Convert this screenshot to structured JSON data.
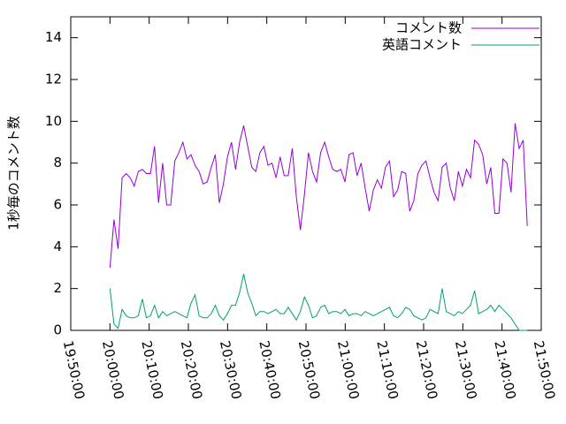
{
  "chart_data": {
    "type": "line",
    "ylabel": "1秒毎のコメント数",
    "xlim": [
      "19:50:00",
      "21:50:00"
    ],
    "xticks": [
      "19:50:00",
      "20:00:00",
      "20:10:00",
      "20:20:00",
      "20:30:00",
      "20:40:00",
      "20:50:00",
      "21:00:00",
      "21:10:00",
      "21:20:00",
      "21:30:00",
      "21:40:00",
      "21:50:00"
    ],
    "ylim": [
      0,
      15
    ],
    "yticks": [
      0,
      2,
      4,
      6,
      8,
      10,
      12,
      14
    ],
    "legend": "top-right",
    "x": [
      "20:00:00",
      "20:01:02",
      "20:02:04",
      "20:03:06",
      "20:04:08",
      "20:05:10",
      "20:06:12",
      "20:07:14",
      "20:08:16",
      "20:09:18",
      "20:10:20",
      "20:11:22",
      "20:12:24",
      "20:13:26",
      "20:14:28",
      "20:15:30",
      "20:16:32",
      "20:17:34",
      "20:18:36",
      "20:19:38",
      "20:20:40",
      "20:21:42",
      "20:22:44",
      "20:23:46",
      "20:24:48",
      "20:25:50",
      "20:26:52",
      "20:27:54",
      "20:28:56",
      "20:29:58",
      "20:31:00",
      "20:32:02",
      "20:33:04",
      "20:34:06",
      "20:35:08",
      "20:36:10",
      "20:37:12",
      "20:38:14",
      "20:39:16",
      "20:40:18",
      "20:41:20",
      "20:42:22",
      "20:43:24",
      "20:44:26",
      "20:45:28",
      "20:46:30",
      "20:47:32",
      "20:48:34",
      "20:49:36",
      "20:50:38",
      "20:51:40",
      "20:52:42",
      "20:53:44",
      "20:54:46",
      "20:55:48",
      "20:56:50",
      "20:57:52",
      "20:58:54",
      "20:59:56",
      "21:00:58",
      "21:02:00",
      "21:03:02",
      "21:04:04",
      "21:05:06",
      "21:06:08",
      "21:07:10",
      "21:08:12",
      "21:09:14",
      "21:10:16",
      "21:11:18",
      "21:12:20",
      "21:13:22",
      "21:14:24",
      "21:15:26",
      "21:16:28",
      "21:17:30",
      "21:18:32",
      "21:19:34",
      "21:20:36",
      "21:21:38",
      "21:22:40",
      "21:23:42",
      "21:24:44",
      "21:25:46",
      "21:26:48",
      "21:27:50",
      "21:28:52",
      "21:29:54",
      "21:30:56",
      "21:31:58",
      "21:33:00",
      "21:34:02",
      "21:35:04",
      "21:36:06",
      "21:37:08",
      "21:38:10",
      "21:39:12",
      "21:40:14",
      "21:41:16",
      "21:42:18",
      "21:43:20",
      "21:44:22",
      "21:45:24",
      "21:46:26"
    ],
    "series": [
      {
        "name": "コメント数",
        "color": "#9400d3",
        "values": [
          3.0,
          5.3,
          3.9,
          7.3,
          7.5,
          7.3,
          6.9,
          7.6,
          7.7,
          7.5,
          7.5,
          8.8,
          6.1,
          8.0,
          6.0,
          6.0,
          8.1,
          8.5,
          9.0,
          8.2,
          8.4,
          7.9,
          7.6,
          7.0,
          7.1,
          7.8,
          8.4,
          6.1,
          7.0,
          8.3,
          9.0,
          7.7,
          9.0,
          9.8,
          8.8,
          7.8,
          7.6,
          8.5,
          8.8,
          7.9,
          8.0,
          7.3,
          8.3,
          7.4,
          7.4,
          8.7,
          6.4,
          4.8,
          6.5,
          8.5,
          7.6,
          7.1,
          8.5,
          9.0,
          8.3,
          7.7,
          7.6,
          7.7,
          7.1,
          8.4,
          8.5,
          7.4,
          8.0,
          6.8,
          5.7,
          6.7,
          7.2,
          6.8,
          7.8,
          8.1,
          6.4,
          6.7,
          7.6,
          7.5,
          5.7,
          6.2,
          7.5,
          7.9,
          8.1,
          7.3,
          6.6,
          6.2,
          7.8,
          8.0,
          6.8,
          6.2,
          7.6,
          6.9,
          7.7,
          7.3,
          9.1,
          8.9,
          8.4,
          7.0,
          7.8,
          5.6,
          5.6,
          8.2,
          8.0,
          6.6,
          9.9,
          8.7,
          9.1,
          5.0
        ]
      },
      {
        "name": "英語コメント",
        "color": "#009e73",
        "values": [
          2.0,
          0.3,
          0.1,
          1.0,
          0.7,
          0.6,
          0.6,
          0.7,
          1.5,
          0.6,
          0.7,
          1.2,
          0.6,
          0.9,
          0.7,
          0.8,
          0.9,
          0.8,
          0.7,
          0.6,
          1.3,
          1.7,
          0.7,
          0.6,
          0.6,
          0.8,
          1.2,
          0.7,
          0.5,
          0.8,
          1.2,
          1.2,
          1.8,
          2.7,
          1.8,
          1.3,
          0.7,
          0.9,
          0.9,
          0.8,
          0.9,
          1.0,
          0.8,
          0.8,
          1.1,
          0.8,
          0.5,
          0.9,
          1.6,
          1.2,
          0.6,
          0.7,
          1.1,
          1.2,
          0.8,
          0.9,
          0.9,
          0.8,
          1.0,
          0.7,
          0.8,
          0.8,
          0.7,
          0.9,
          0.8,
          0.7,
          0.8,
          0.9,
          1.0,
          1.1,
          0.7,
          0.6,
          0.8,
          1.1,
          1.0,
          0.7,
          0.6,
          0.5,
          0.6,
          1.0,
          0.9,
          0.8,
          2.0,
          0.9,
          0.8,
          0.7,
          0.9,
          0.8,
          1.0,
          1.2,
          1.9,
          0.8,
          0.9,
          1.0,
          1.2,
          0.9,
          1.2,
          1.0,
          0.8,
          0.6,
          0.3,
          0.0,
          0.0,
          0.0
        ]
      }
    ]
  }
}
